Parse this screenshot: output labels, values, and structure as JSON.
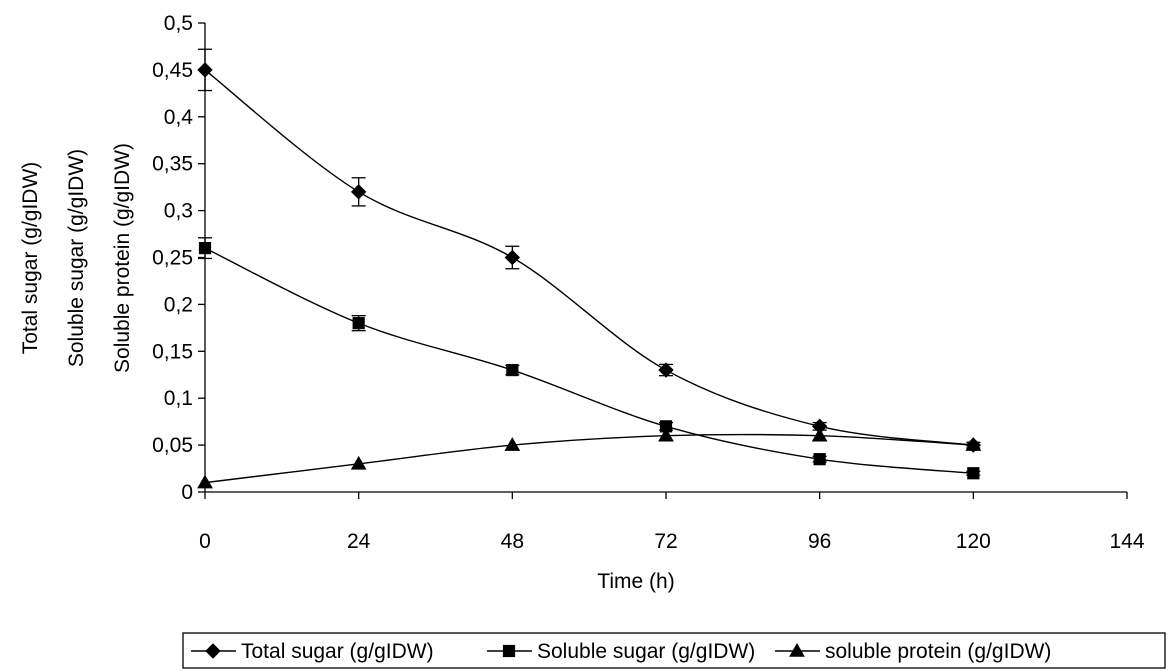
{
  "chart_data": {
    "type": "line",
    "title": "",
    "xlabel": "Time (h)",
    "ylabel_lines": [
      "Total sugar (g/gIDW)",
      "Soluble sugar (g/gIDW)",
      "Soluble protein (g/gIDW)"
    ],
    "xlim": [
      0,
      144
    ],
    "ylim": [
      0,
      0.5
    ],
    "xticks": [
      0,
      24,
      48,
      72,
      96,
      120,
      144
    ],
    "xtick_labels": [
      "0",
      "24",
      "48",
      "72",
      "96",
      "120",
      "144"
    ],
    "yticks": [
      0,
      0.05,
      0.1,
      0.15,
      0.2,
      0.25,
      0.3,
      0.35,
      0.4,
      0.45,
      0.5
    ],
    "ytick_labels": [
      "0",
      "0,05",
      "0,1",
      "0,15",
      "0,2",
      "0,25",
      "0,3",
      "0,35",
      "0,4",
      "0,45",
      "0,5"
    ],
    "grid": false,
    "legend_position": "bottom",
    "series": [
      {
        "name": "Total sugar (g/gIDW)",
        "marker": "diamond",
        "x": [
          0,
          24,
          48,
          72,
          96,
          120
        ],
        "y": [
          0.45,
          0.32,
          0.25,
          0.13,
          0.07,
          0.05
        ],
        "err": [
          0.022,
          0.015,
          0.012,
          0.006,
          0.004,
          0.003
        ]
      },
      {
        "name": "Soluble sugar (g/gIDW)",
        "marker": "square",
        "x": [
          0,
          24,
          48,
          72,
          96,
          120
        ],
        "y": [
          0.26,
          0.18,
          0.13,
          0.07,
          0.035,
          0.02
        ],
        "err": [
          0.011,
          0.008,
          0.005,
          0.004,
          0.003,
          0.002
        ]
      },
      {
        "name": "soluble protein (g/gIDW)",
        "marker": "triangle",
        "x": [
          0,
          24,
          48,
          72,
          96,
          120
        ],
        "y": [
          0.01,
          0.03,
          0.05,
          0.06,
          0.06,
          0.05
        ],
        "err": [
          0,
          0,
          0,
          0,
          0,
          0
        ]
      }
    ]
  }
}
